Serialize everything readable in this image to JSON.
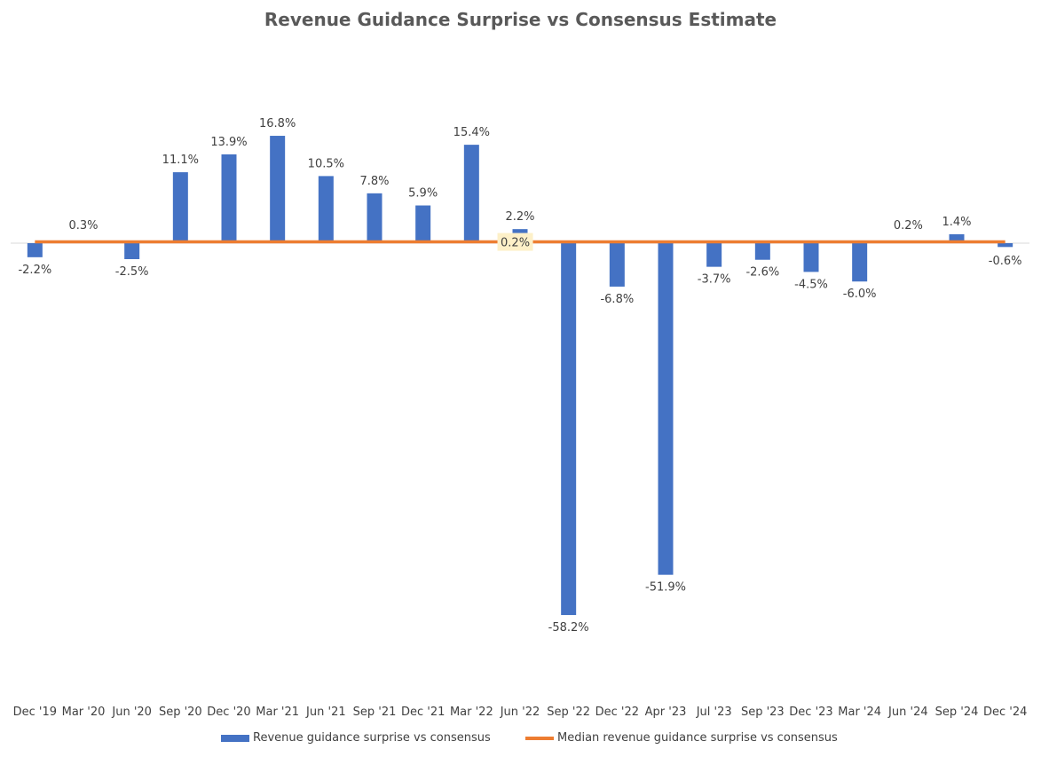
{
  "chart_data": {
    "type": "bar",
    "title": "Revenue Guidance Surprise vs Consensus Estimate",
    "xlabel": "",
    "ylabel": "",
    "ylim": [
      -70,
      20
    ],
    "categories": [
      "Dec '19",
      "Mar '20",
      "Jun '20",
      "Sep '20",
      "Dec '20",
      "Mar '21",
      "Jun '21",
      "Sep '21",
      "Dec '21",
      "Mar '22",
      "Jun '22",
      "Sep '22",
      "Dec '22",
      "Apr '23",
      "Jul '23",
      "Sep '23",
      "Dec '23",
      "Mar '24",
      "Jun '24",
      "Sep '24",
      "Dec '24"
    ],
    "series": [
      {
        "name": "Revenue guidance surprise vs consensus",
        "kind": "bar",
        "color": "#4472C4",
        "values": [
          -2.2,
          0.3,
          -2.5,
          11.1,
          13.9,
          16.8,
          10.5,
          7.8,
          5.9,
          15.4,
          2.2,
          -58.2,
          -6.8,
          -51.9,
          -3.7,
          -2.6,
          -4.5,
          -6.0,
          0.2,
          1.4,
          -0.6
        ],
        "labels": [
          "-2.2%",
          "0.3%",
          "-2.5%",
          "11.1%",
          "13.9%",
          "16.8%",
          "10.5%",
          "7.8%",
          "5.9%",
          "15.4%",
          "2.2%",
          "-58.2%",
          "-6.8%",
          "-51.9%",
          "-3.7%",
          "-2.6%",
          "-4.5%",
          "-6.0%",
          "0.2%",
          "1.4%",
          "-0.6%"
        ]
      },
      {
        "name": "Median revenue guidance surprise vs consensus",
        "kind": "line",
        "color": "#ED7D31",
        "value": 0.2,
        "label": "0.2%"
      }
    ],
    "grid": false,
    "legend": "bottom"
  }
}
